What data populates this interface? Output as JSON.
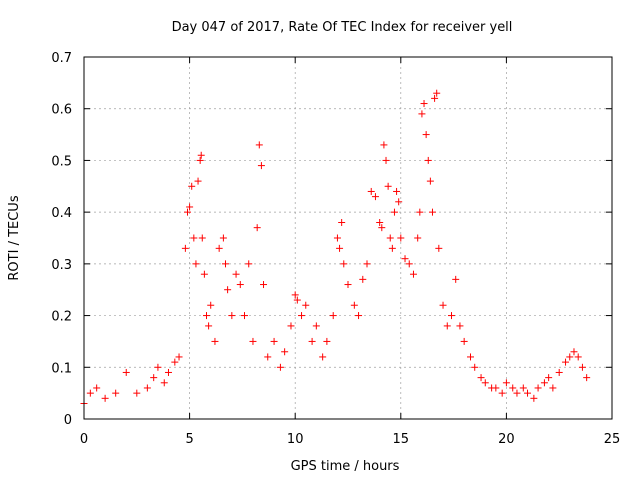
{
  "chart_data": {
    "type": "scatter",
    "title": "Day 047 of 2017, Rate Of TEC Index for receiver yell",
    "xlabel": "GPS time / hours",
    "ylabel": "ROTI / TECUs",
    "xlim": [
      0,
      25
    ],
    "ylim": [
      0,
      0.7
    ],
    "xticks": [
      0,
      5,
      10,
      15,
      20,
      25
    ],
    "yticks": [
      0,
      0.1,
      0.2,
      0.3,
      0.4,
      0.5,
      0.6,
      0.7
    ],
    "grid": true,
    "marker": "+",
    "colors": {
      "points": "#ff0000",
      "grid": "#a0a0a0",
      "axes": "#000000"
    },
    "series": [
      {
        "x": [
          0.0,
          0.3,
          0.6,
          1.0,
          1.5,
          2.0,
          2.5,
          3.0,
          3.3,
          3.5,
          3.8,
          4.0,
          4.3,
          4.5,
          4.8,
          4.9,
          5.0,
          5.1,
          5.2,
          5.3,
          5.4,
          5.5,
          5.55,
          5.6,
          5.7,
          5.8,
          5.9,
          6.0,
          6.2,
          6.4,
          6.6,
          6.7,
          6.8,
          7.0,
          7.2,
          7.4,
          7.6,
          7.8,
          8.0,
          8.2,
          8.3,
          8.4,
          8.5,
          8.7,
          9.0,
          9.3,
          9.5,
          9.8,
          10.0,
          10.1,
          10.3,
          10.5,
          10.8,
          11.0,
          11.3,
          11.5,
          11.8,
          12.0,
          12.1,
          12.2,
          12.3,
          12.5,
          12.8,
          13.0,
          13.2,
          13.4,
          13.6,
          13.8,
          14.0,
          14.1,
          14.2,
          14.3,
          14.4,
          14.5,
          14.6,
          14.7,
          14.8,
          14.9,
          15.0,
          15.2,
          15.4,
          15.6,
          15.8,
          15.9,
          16.0,
          16.1,
          16.2,
          16.3,
          16.4,
          16.5,
          16.6,
          16.7,
          16.8,
          17.0,
          17.2,
          17.4,
          17.6,
          17.8,
          18.0,
          18.3,
          18.5,
          18.8,
          19.0,
          19.3,
          19.5,
          19.8,
          20.0,
          20.3,
          20.5,
          20.8,
          21.0,
          21.3,
          21.5,
          21.8,
          22.0,
          22.2,
          22.5,
          22.8,
          23.0,
          23.2,
          23.4,
          23.6,
          23.8
        ],
        "y": [
          0.03,
          0.05,
          0.06,
          0.04,
          0.05,
          0.09,
          0.05,
          0.06,
          0.08,
          0.1,
          0.07,
          0.09,
          0.11,
          0.12,
          0.33,
          0.4,
          0.41,
          0.45,
          0.35,
          0.3,
          0.46,
          0.5,
          0.51,
          0.35,
          0.28,
          0.2,
          0.18,
          0.22,
          0.15,
          0.33,
          0.35,
          0.3,
          0.25,
          0.2,
          0.28,
          0.26,
          0.2,
          0.3,
          0.15,
          0.37,
          0.53,
          0.49,
          0.26,
          0.12,
          0.15,
          0.1,
          0.13,
          0.18,
          0.24,
          0.23,
          0.2,
          0.22,
          0.15,
          0.18,
          0.12,
          0.15,
          0.2,
          0.35,
          0.33,
          0.38,
          0.3,
          0.26,
          0.22,
          0.2,
          0.27,
          0.3,
          0.44,
          0.43,
          0.38,
          0.37,
          0.53,
          0.5,
          0.45,
          0.35,
          0.33,
          0.4,
          0.44,
          0.42,
          0.35,
          0.31,
          0.3,
          0.28,
          0.35,
          0.4,
          0.59,
          0.61,
          0.55,
          0.5,
          0.46,
          0.4,
          0.62,
          0.63,
          0.33,
          0.22,
          0.18,
          0.2,
          0.27,
          0.18,
          0.15,
          0.12,
          0.1,
          0.08,
          0.07,
          0.06,
          0.06,
          0.05,
          0.07,
          0.06,
          0.05,
          0.06,
          0.05,
          0.04,
          0.06,
          0.07,
          0.08,
          0.06,
          0.09,
          0.11,
          0.12,
          0.13,
          0.12,
          0.1,
          0.08
        ]
      }
    ]
  }
}
